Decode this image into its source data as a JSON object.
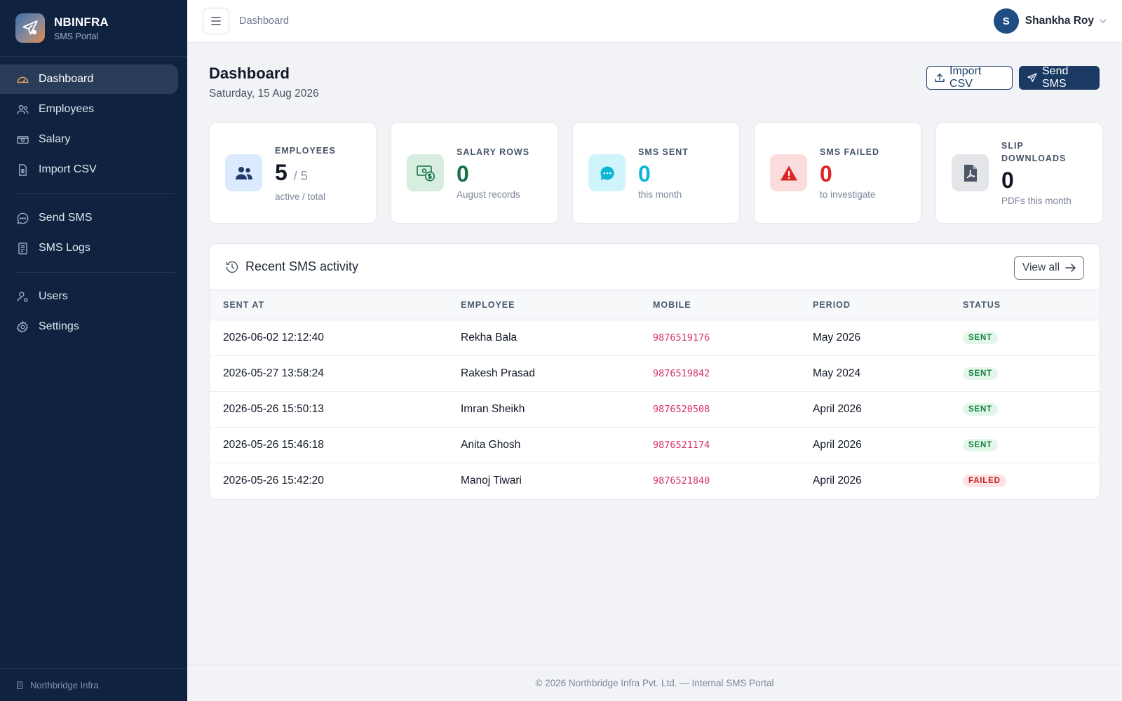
{
  "brand": {
    "name": "NBINFRA",
    "subtitle": "SMS Portal"
  },
  "sidebar": {
    "items": [
      {
        "label": "Dashboard",
        "icon": "gauge-icon",
        "active": true
      },
      {
        "label": "Employees",
        "icon": "users-icon"
      },
      {
        "label": "Salary",
        "icon": "cash-icon"
      },
      {
        "label": "Import CSV",
        "icon": "spreadsheet-icon"
      },
      {
        "label": "Send SMS",
        "icon": "chat-icon"
      },
      {
        "label": "SMS Logs",
        "icon": "log-icon"
      },
      {
        "label": "Users",
        "icon": "user-gear-icon"
      },
      {
        "label": "Settings",
        "icon": "gear-icon"
      }
    ],
    "footer": "Northbridge Infra"
  },
  "topbar": {
    "breadcrumb": "Dashboard",
    "user": {
      "initial": "S",
      "name": "Shankha Roy"
    }
  },
  "page": {
    "title": "Dashboard",
    "date": "Saturday, 15 Aug 2026",
    "import_label": "Import CSV",
    "send_label": "Send SMS"
  },
  "cards": [
    {
      "label": "EMPLOYEES",
      "value": "5",
      "total": "/ 5",
      "sub": "active / total",
      "value_color": "#111827",
      "icon": "users-icon"
    },
    {
      "label": "SALARY ROWS",
      "value": "0",
      "sub": "August records",
      "value_color": "#157347",
      "icon": "money-icon"
    },
    {
      "label": "SMS SENT",
      "value": "0",
      "sub": "this month",
      "value_color": "#0bb5d6",
      "icon": "chat-bubble-icon"
    },
    {
      "label": "SMS FAILED",
      "value": "0",
      "sub": "to investigate",
      "value_color": "#dc2626",
      "icon": "warning-icon"
    },
    {
      "label": "SLIP DOWNLOADS",
      "value": "0",
      "sub": "PDFs this month",
      "value_color": "#111827",
      "icon": "pdf-icon"
    }
  ],
  "activity": {
    "title": "Recent SMS activity",
    "view_all": "View all",
    "columns": [
      "SENT AT",
      "EMPLOYEE",
      "MOBILE",
      "PERIOD",
      "STATUS"
    ],
    "rows": [
      {
        "sent_at": "2026-06-02 12:12:40",
        "employee": "Rekha Bala",
        "mobile": "9876519176",
        "period": "May 2026",
        "status": "SENT"
      },
      {
        "sent_at": "2026-05-27 13:58:24",
        "employee": "Rakesh Prasad",
        "mobile": "9876519842",
        "period": "May 2024",
        "status": "SENT"
      },
      {
        "sent_at": "2026-05-26 15:50:13",
        "employee": "Imran Sheikh",
        "mobile": "9876520508",
        "period": "April 2026",
        "status": "SENT"
      },
      {
        "sent_at": "2026-05-26 15:46:18",
        "employee": "Anita Ghosh",
        "mobile": "9876521174",
        "period": "April 2026",
        "status": "SENT"
      },
      {
        "sent_at": "2026-05-26 15:42:20",
        "employee": "Manoj Tiwari",
        "mobile": "9876521840",
        "period": "April 2026",
        "status": "FAILED"
      }
    ]
  },
  "footer": "© 2026 Northbridge Infra Pvt. Ltd. — Internal SMS Portal"
}
